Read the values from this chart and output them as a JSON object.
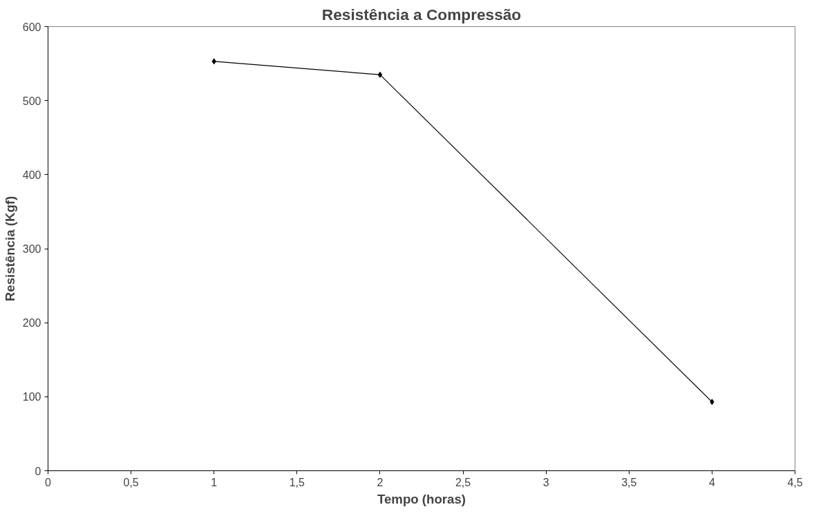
{
  "chart_data": {
    "type": "line",
    "title": "Resistência a Compressão",
    "xlabel": "Tempo (horas)",
    "ylabel": "Resistência (Kgf)",
    "x": [
      1,
      2,
      4
    ],
    "series": [
      {
        "color": "#000000",
        "values": [
          553,
          535,
          93
        ]
      }
    ],
    "xlim": [
      0,
      4.5
    ],
    "xticks": [
      0,
      {
        "value": 0.5,
        "label": "0,5"
      },
      1,
      {
        "value": 1.5,
        "label": "1,5"
      },
      2,
      {
        "value": 2.5,
        "label": "2,5"
      },
      3,
      {
        "value": 3.5,
        "label": "3,5"
      },
      4,
      {
        "value": 4.5,
        "label": "4,5"
      }
    ],
    "ylim": [
      0,
      600
    ],
    "yticks": [
      0,
      100,
      200,
      300,
      400,
      500,
      600
    ],
    "grid": false,
    "marker": "diamond",
    "line_style": "solid"
  }
}
